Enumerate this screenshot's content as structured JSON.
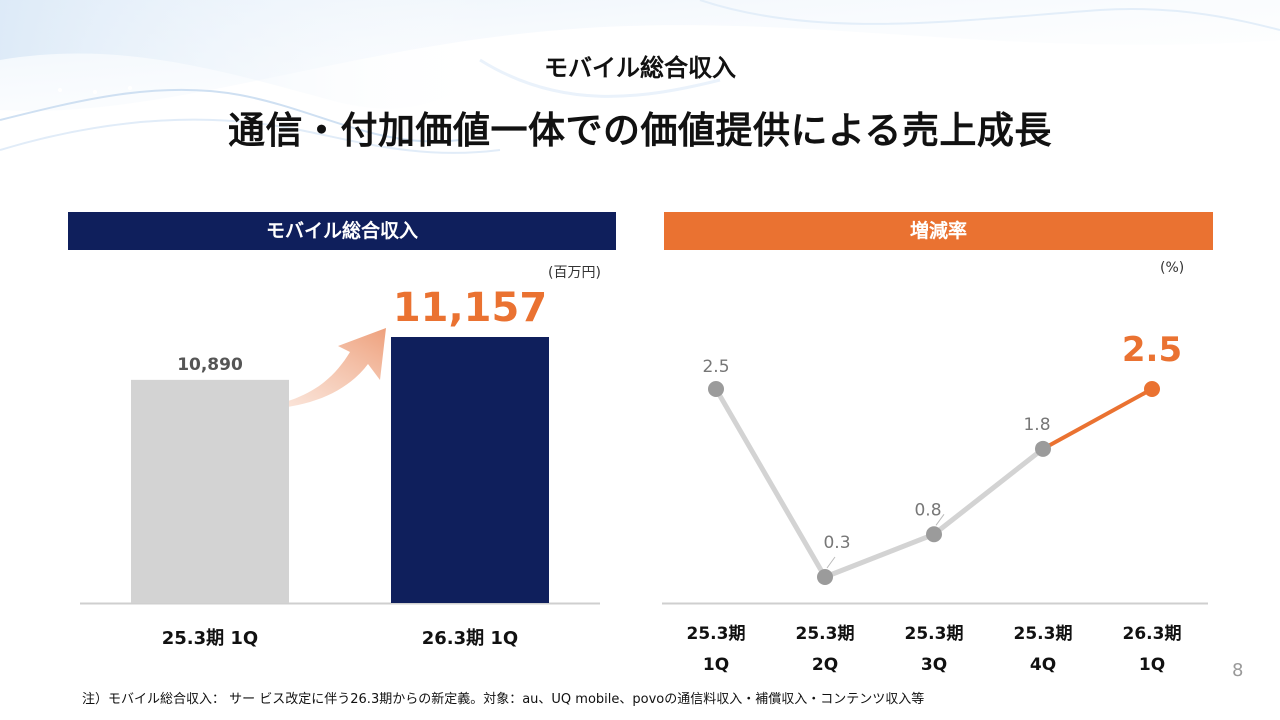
{
  "header": {
    "subtitle": "モバイル総合収入",
    "title": "通信・付加価値一体での価値提供による売上成長"
  },
  "left_panel": {
    "header": "モバイル総合収入",
    "unit": "(百万円)"
  },
  "right_panel": {
    "header": "増減率",
    "unit": "(%)"
  },
  "chart_data": [
    {
      "type": "bar",
      "title": "モバイル総合収入",
      "unit": "(百万円)",
      "categories": [
        "25.3期 1Q",
        "26.3期 1Q"
      ],
      "values": [
        10890,
        11157
      ],
      "value_labels": [
        "10,890",
        "11,157"
      ],
      "ylim": [
        0,
        12000
      ],
      "colors": [
        "#d3d3d3",
        "#0f1f5c"
      ],
      "highlight_label_color": "#ea7231"
    },
    {
      "type": "line",
      "title": "増減率",
      "unit": "(%)",
      "categories": [
        "25.3期\n1Q",
        "25.3期\n2Q",
        "25.3期\n3Q",
        "25.3期\n4Q",
        "26.3期\n1Q"
      ],
      "category_lines": [
        [
          "25.3期",
          "1Q"
        ],
        [
          "25.3期",
          "2Q"
        ],
        [
          "25.3期",
          "3Q"
        ],
        [
          "25.3期",
          "4Q"
        ],
        [
          "26.3期",
          "1Q"
        ]
      ],
      "values": [
        2.5,
        0.3,
        0.8,
        1.8,
        2.5
      ],
      "value_labels": [
        "2.5",
        "0.3",
        "0.8",
        "1.8",
        "2.5"
      ],
      "ylim": [
        0,
        2.7
      ],
      "line_color": "#d3d3d3",
      "marker_color": "#9b9b9b",
      "highlight_color": "#ea7231"
    }
  ],
  "footnote": "注）モバイル総合収入： サー ビス改定に伴う26.3期からの新定義。対象：au、UQ mobile、povoの通信料収入・補償収入・コンテンツ収入等",
  "page_number": "8"
}
